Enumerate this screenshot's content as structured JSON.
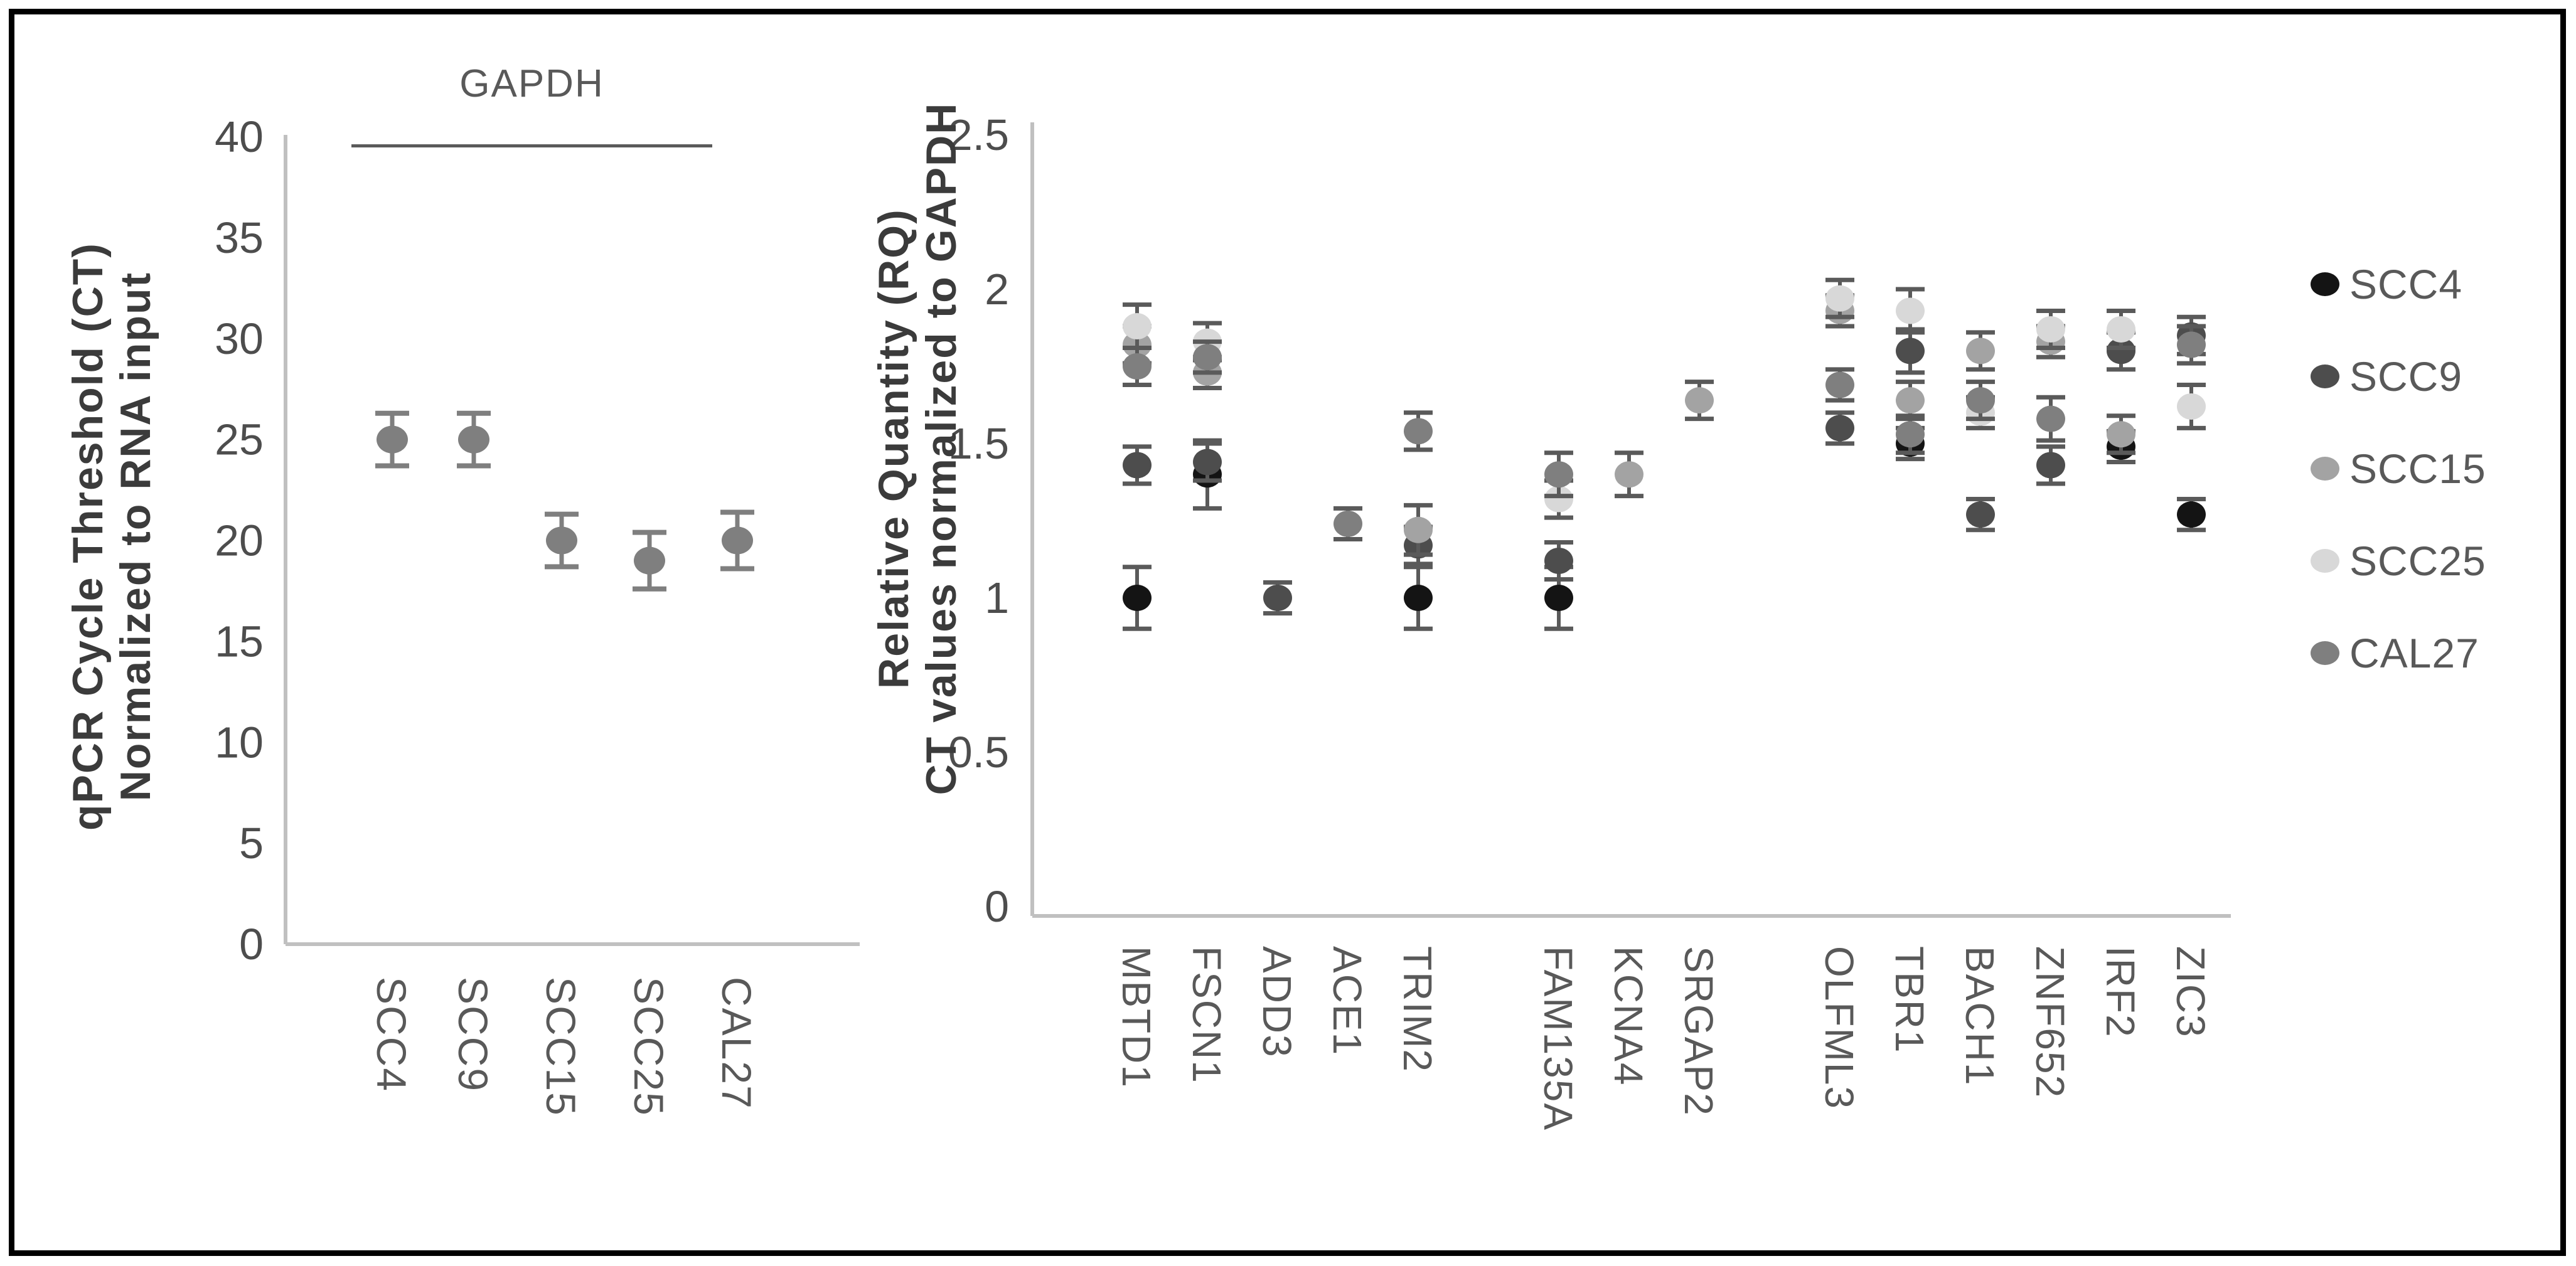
{
  "figure": {
    "background": "#ffffff",
    "border_color": "#000000",
    "axis_color": "#c0c0c0",
    "error_bar_color": "#5a5a5a"
  },
  "legend": {
    "position": "right",
    "entries": [
      {
        "label": "SCC4",
        "color": "#141414"
      },
      {
        "label": "SCC9",
        "color": "#4d4d4d"
      },
      {
        "label": "SCC15",
        "color": "#a3a3a3"
      },
      {
        "label": "SCC25",
        "color": "#d8d8d8"
      },
      {
        "label": "CAL27",
        "color": "#7f7f7f"
      }
    ]
  },
  "chart_data": [
    {
      "type": "scatter",
      "panel": "left",
      "annotation": "GAPDH",
      "ylabel_line1": "qPCR Cycle Threshold (CT)",
      "ylabel_line2": "Normalized to RNA input",
      "categories": [
        "SCC4",
        "SCC9",
        "SCC15",
        "SCC25",
        "CAL27"
      ],
      "values": [
        25,
        25,
        20,
        19,
        20
      ],
      "errors": [
        1.3,
        1.3,
        1.3,
        1.4,
        1.4
      ],
      "ylim": [
        0,
        40
      ],
      "yticks": [
        0,
        5,
        10,
        15,
        20,
        25,
        30,
        35,
        40
      ],
      "ytick_labels": [
        "0",
        "5",
        "10",
        "15",
        "20",
        "25",
        "30",
        "35",
        "40"
      ],
      "grid": false,
      "point_color": "#7f7f7f"
    },
    {
      "type": "scatter",
      "panel": "right",
      "ylabel_line1": "Relative Quantity (RQ)",
      "ylabel_line2": "CT values normalized to GAPDH",
      "ylim": [
        0,
        2.5
      ],
      "yticks": [
        0,
        0.5,
        1,
        1.5,
        2,
        2.5
      ],
      "ytick_labels": [
        "0",
        "0.5",
        "1",
        "1.5",
        "2",
        "2.5"
      ],
      "grid": false,
      "categories": [
        "MBTD1",
        "FSCN1",
        "ADD3",
        "ACE1",
        "TRIM2",
        "",
        "FAM135A",
        "KCNA4",
        "SRGAP2",
        "",
        "OLFML3",
        "TBR1",
        "BACH1",
        "ZNF652",
        "IRF2",
        "ZIC3"
      ],
      "series": [
        {
          "name": "SCC4",
          "color": "#141414"
        },
        {
          "name": "SCC9",
          "color": "#4d4d4d"
        },
        {
          "name": "SCC15",
          "color": "#a3a3a3"
        },
        {
          "name": "SCC25",
          "color": "#d8d8d8"
        },
        {
          "name": "CAL27",
          "color": "#7f7f7f"
        }
      ],
      "points": [
        {
          "gene": "MBTD1",
          "series": "SCC4",
          "value": 1.0,
          "err": 0.1
        },
        {
          "gene": "MBTD1",
          "series": "SCC9",
          "value": 1.43,
          "err": 0.06
        },
        {
          "gene": "MBTD1",
          "series": "SCC15",
          "value": 1.82,
          "err": 0.06
        },
        {
          "gene": "MBTD1",
          "series": "SCC25",
          "value": 1.88,
          "err": 0.07
        },
        {
          "gene": "MBTD1",
          "series": "CAL27",
          "value": 1.75,
          "err": 0.06
        },
        {
          "gene": "FSCN1",
          "series": "SCC4",
          "value": 1.4,
          "err": 0.11
        },
        {
          "gene": "FSCN1",
          "series": "SCC9",
          "value": 1.44,
          "err": 0.06
        },
        {
          "gene": "FSCN1",
          "series": "SCC15",
          "value": 1.73,
          "err": 0.05
        },
        {
          "gene": "FSCN1",
          "series": "SCC25",
          "value": 1.83,
          "err": 0.06
        },
        {
          "gene": "FSCN1",
          "series": "CAL27",
          "value": 1.78,
          "err": 0.05
        },
        {
          "gene": "ADD3",
          "series": "SCC9",
          "value": 1.0,
          "err": 0.05
        },
        {
          "gene": "ACE1",
          "series": "CAL27",
          "value": 1.24,
          "err": 0.05
        },
        {
          "gene": "TRIM2",
          "series": "SCC4",
          "value": 1.0,
          "err": 0.1
        },
        {
          "gene": "TRIM2",
          "series": "SCC9",
          "value": 1.17,
          "err": 0.06
        },
        {
          "gene": "TRIM2",
          "series": "SCC15",
          "value": 1.22,
          "err": 0.08
        },
        {
          "gene": "TRIM2",
          "series": "CAL27",
          "value": 1.54,
          "err": 0.06
        },
        {
          "gene": "FAM135A",
          "series": "SCC4",
          "value": 1.0,
          "err": 0.1
        },
        {
          "gene": "FAM135A",
          "series": "SCC9",
          "value": 1.12,
          "err": 0.06
        },
        {
          "gene": "FAM135A",
          "series": "SCC25",
          "value": 1.32,
          "err": 0.06
        },
        {
          "gene": "FAM135A",
          "series": "CAL27",
          "value": 1.4,
          "err": 0.07
        },
        {
          "gene": "KCNA4",
          "series": "SCC15",
          "value": 1.4,
          "err": 0.07
        },
        {
          "gene": "SRGAP2",
          "series": "SCC15",
          "value": 1.64,
          "err": 0.06
        },
        {
          "gene": "OLFML3",
          "series": "SCC9",
          "value": 1.55,
          "err": 0.05
        },
        {
          "gene": "OLFML3",
          "series": "SCC15",
          "value": 1.93,
          "err": 0.05
        },
        {
          "gene": "OLFML3",
          "series": "SCC25",
          "value": 1.97,
          "err": 0.06
        },
        {
          "gene": "OLFML3",
          "series": "CAL27",
          "value": 1.69,
          "err": 0.05
        },
        {
          "gene": "TBR1",
          "series": "SCC4",
          "value": 1.5,
          "err": 0.05
        },
        {
          "gene": "TBR1",
          "series": "SCC9",
          "value": 1.8,
          "err": 0.07
        },
        {
          "gene": "TBR1",
          "series": "SCC15",
          "value": 1.64,
          "err": 0.06
        },
        {
          "gene": "TBR1",
          "series": "SCC25",
          "value": 1.93,
          "err": 0.07
        },
        {
          "gene": "TBR1",
          "series": "CAL27",
          "value": 1.53,
          "err": 0.06
        },
        {
          "gene": "BACH1",
          "series": "SCC9",
          "value": 1.27,
          "err": 0.05
        },
        {
          "gene": "BACH1",
          "series": "SCC15",
          "value": 1.8,
          "err": 0.06
        },
        {
          "gene": "BACH1",
          "series": "SCC25",
          "value": 1.6,
          "err": 0.05
        },
        {
          "gene": "BACH1",
          "series": "CAL27",
          "value": 1.64,
          "err": 0.06
        },
        {
          "gene": "ZNF652",
          "series": "SCC9",
          "value": 1.43,
          "err": 0.06
        },
        {
          "gene": "ZNF652",
          "series": "SCC15",
          "value": 1.83,
          "err": 0.05
        },
        {
          "gene": "ZNF652",
          "series": "SCC25",
          "value": 1.87,
          "err": 0.06
        },
        {
          "gene": "ZNF652",
          "series": "CAL27",
          "value": 1.58,
          "err": 0.07
        },
        {
          "gene": "IRF2",
          "series": "SCC4",
          "value": 1.49,
          "err": 0.05
        },
        {
          "gene": "IRF2",
          "series": "SCC9",
          "value": 1.8,
          "err": 0.06
        },
        {
          "gene": "IRF2",
          "series": "SCC15",
          "value": 1.53,
          "err": 0.06
        },
        {
          "gene": "IRF2",
          "series": "SCC25",
          "value": 1.87,
          "err": 0.06
        },
        {
          "gene": "ZIC3",
          "series": "SCC4",
          "value": 1.27,
          "err": 0.05
        },
        {
          "gene": "ZIC3",
          "series": "SCC9",
          "value": 1.85,
          "err": 0.06
        },
        {
          "gene": "ZIC3",
          "series": "SCC25",
          "value": 1.62,
          "err": 0.07
        },
        {
          "gene": "ZIC3",
          "series": "CAL27",
          "value": 1.82,
          "err": 0.06
        }
      ]
    }
  ]
}
